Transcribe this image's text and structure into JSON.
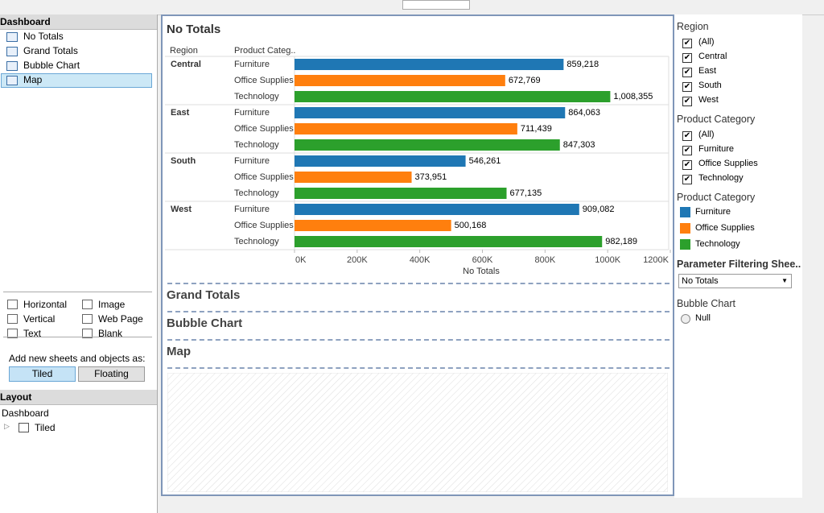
{
  "sidebar": {
    "title": "Dashboard",
    "sheets": [
      "No Totals",
      "Grand Totals",
      "Bubble Chart",
      "Map"
    ],
    "objects": [
      "Horizontal",
      "Image",
      "Vertical",
      "Web Page",
      "Text",
      "Blank"
    ],
    "add_label": "Add new sheets and objects as:",
    "modes": [
      "Tiled",
      "Floating"
    ],
    "layout_title": "Layout",
    "layout_items": [
      "Dashboard",
      "Tiled"
    ]
  },
  "chart_data": {
    "type": "bar",
    "orientation": "horizontal",
    "title": "No Totals",
    "row_headers": [
      "Region",
      "Product Categ.."
    ],
    "regions": [
      "Central",
      "East",
      "South",
      "West"
    ],
    "x_label": "No Totals",
    "series": [
      {
        "name": "Furniture",
        "color": "#1f77b4",
        "values": [
          859218,
          864063,
          546261,
          909082
        ],
        "value_labels": [
          "859,218",
          "864,063",
          "546,261",
          "909,082"
        ]
      },
      {
        "name": "Office Supplies",
        "color": "#ff7f0e",
        "values": [
          672769,
          711439,
          373951,
          500168
        ],
        "value_labels": [
          "672,769",
          "711,439",
          "373,951",
          "500,168"
        ]
      },
      {
        "name": "Technology",
        "color": "#2ca02c",
        "values": [
          1008355,
          847303,
          677135,
          982189
        ],
        "value_labels": [
          "1,008,355",
          "847,303",
          "677,135",
          "982,189"
        ]
      }
    ],
    "xlim": [
      0,
      1200000
    ],
    "xticks": [
      {
        "value": 0,
        "label": "0K"
      },
      {
        "value": 200000,
        "label": "200K"
      },
      {
        "value": 400000,
        "label": "400K"
      },
      {
        "value": 600000,
        "label": "600K"
      },
      {
        "value": 800000,
        "label": "800K"
      },
      {
        "value": 1000000,
        "label": "1000K"
      },
      {
        "value": 1200000,
        "label": "1200K"
      }
    ]
  },
  "sections": [
    "Grand Totals",
    "Bubble Chart",
    "Map"
  ],
  "filters": [
    {
      "title": "Region",
      "options": [
        "(All)",
        "Central",
        "East",
        "South",
        "West"
      ]
    },
    {
      "title": "Product Category",
      "options": [
        "(All)",
        "Furniture",
        "Office Supplies",
        "Technology"
      ]
    }
  ],
  "legend": {
    "title": "Product Category"
  },
  "parameter": {
    "title": "Parameter Filtering Shee..",
    "value": "No Totals"
  },
  "bubble_filter": {
    "title": "Bubble Chart",
    "options": [
      "Null"
    ]
  }
}
